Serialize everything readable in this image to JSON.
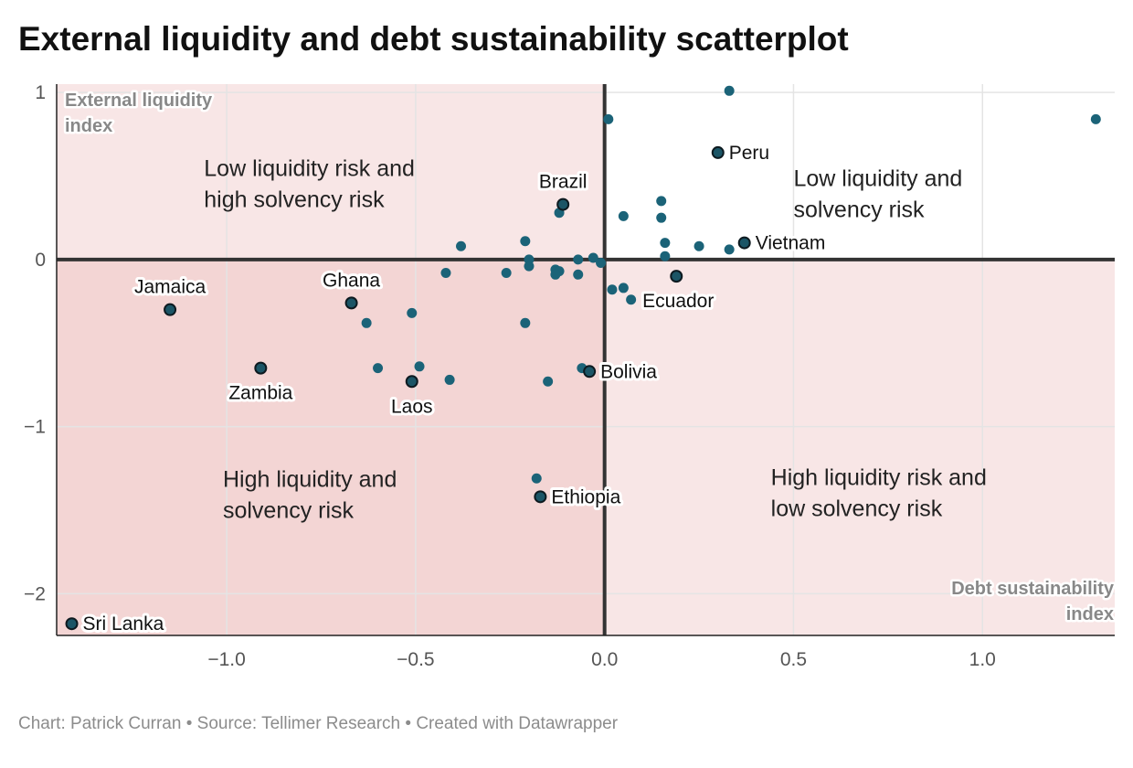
{
  "title": "External liquidity and debt sustainability scatterplot",
  "footer": "Chart: Patrick Curran • Source: Tellimer Research • Created with Datawrapper",
  "colors": {
    "dot": "#1b6378",
    "highlight_dot": "#1b5566",
    "dot_stroke": "#0d1a20",
    "band_light": "#f8e6e6",
    "band_dark": "#f3d5d4",
    "axis_line": "#333333",
    "grid": "#e4e4e4"
  },
  "chart_data": {
    "type": "scatter",
    "title": "External liquidity and debt sustainability scatterplot",
    "xlabel": "Debt sustainability index",
    "ylabel": "External liquidity index",
    "xlim": [
      -1.45,
      1.35
    ],
    "ylim": [
      -2.25,
      1.05
    ],
    "x_ticks": [
      -1.0,
      -0.5,
      0.0,
      0.5,
      1.0
    ],
    "x_tick_labels": [
      "−1.0",
      "−0.5",
      "0.0",
      "0.5",
      "1.0"
    ],
    "y_ticks": [
      1,
      0,
      -1,
      -2
    ],
    "y_tick_labels": [
      "1",
      "0",
      "−1",
      "−2"
    ],
    "grid": true,
    "quadrant_labels": [
      {
        "lines": [
          "Low liquidity risk and",
          "high solvency risk"
        ],
        "x": -1.06,
        "y": 0.5
      },
      {
        "lines": [
          "Low liquidity and",
          "solvency risk"
        ],
        "x": 0.5,
        "y": 0.44
      },
      {
        "lines": [
          "High liquidity and",
          "solvency risk"
        ],
        "x": -1.01,
        "y": -1.36
      },
      {
        "lines": [
          "High liquidity risk and",
          "low solvency risk"
        ],
        "x": 0.44,
        "y": -1.35
      }
    ],
    "labeled_points": [
      {
        "name": "Peru",
        "x": 0.3,
        "y": 0.64,
        "label_pos": "right"
      },
      {
        "name": "Brazil",
        "x": -0.11,
        "y": 0.33,
        "label_pos": "above"
      },
      {
        "name": "Vietnam",
        "x": 0.37,
        "y": 0.1,
        "label_pos": "right"
      },
      {
        "name": "Ecuador",
        "x": 0.19,
        "y": -0.1,
        "label_pos": "below-right"
      },
      {
        "name": "Ghana",
        "x": -0.67,
        "y": -0.26,
        "label_pos": "above"
      },
      {
        "name": "Jamaica",
        "x": -1.15,
        "y": -0.3,
        "label_pos": "above"
      },
      {
        "name": "Zambia",
        "x": -0.91,
        "y": -0.65,
        "label_pos": "below"
      },
      {
        "name": "Laos",
        "x": -0.51,
        "y": -0.73,
        "label_pos": "below"
      },
      {
        "name": "Bolivia",
        "x": -0.04,
        "y": -0.67,
        "label_pos": "right"
      },
      {
        "name": "Ethiopia",
        "x": -0.17,
        "y": -1.42,
        "label_pos": "right"
      },
      {
        "name": "Sri Lanka",
        "x": -1.41,
        "y": -2.18,
        "label_pos": "right"
      }
    ],
    "points": [
      {
        "x": 0.33,
        "y": 1.01
      },
      {
        "x": 0.01,
        "y": 0.84
      },
      {
        "x": 1.3,
        "y": 0.84
      },
      {
        "x": -0.12,
        "y": 0.28
      },
      {
        "x": 0.05,
        "y": 0.26
      },
      {
        "x": 0.15,
        "y": 0.35
      },
      {
        "x": 0.15,
        "y": 0.25
      },
      {
        "x": 0.16,
        "y": 0.1
      },
      {
        "x": 0.25,
        "y": 0.08
      },
      {
        "x": 0.33,
        "y": 0.06
      },
      {
        "x": 0.16,
        "y": 0.02
      },
      {
        "x": -0.38,
        "y": 0.08
      },
      {
        "x": -0.21,
        "y": 0.11
      },
      {
        "x": -0.2,
        "y": 0.0
      },
      {
        "x": -0.2,
        "y": -0.04
      },
      {
        "x": -0.07,
        "y": 0.0
      },
      {
        "x": -0.03,
        "y": 0.01
      },
      {
        "x": -0.01,
        "y": -0.02
      },
      {
        "x": -0.42,
        "y": -0.08
      },
      {
        "x": -0.26,
        "y": -0.08
      },
      {
        "x": -0.13,
        "y": -0.06
      },
      {
        "x": -0.12,
        "y": -0.07
      },
      {
        "x": -0.13,
        "y": -0.09
      },
      {
        "x": -0.07,
        "y": -0.09
      },
      {
        "x": 0.02,
        "y": -0.18
      },
      {
        "x": 0.05,
        "y": -0.17
      },
      {
        "x": 0.07,
        "y": -0.24
      },
      {
        "x": -0.51,
        "y": -0.32
      },
      {
        "x": -0.63,
        "y": -0.38
      },
      {
        "x": -0.21,
        "y": -0.38
      },
      {
        "x": -0.6,
        "y": -0.65
      },
      {
        "x": -0.49,
        "y": -0.64
      },
      {
        "x": -0.41,
        "y": -0.72
      },
      {
        "x": -0.15,
        "y": -0.73
      },
      {
        "x": -0.06,
        "y": -0.65
      },
      {
        "x": -0.18,
        "y": -1.31
      }
    ]
  }
}
